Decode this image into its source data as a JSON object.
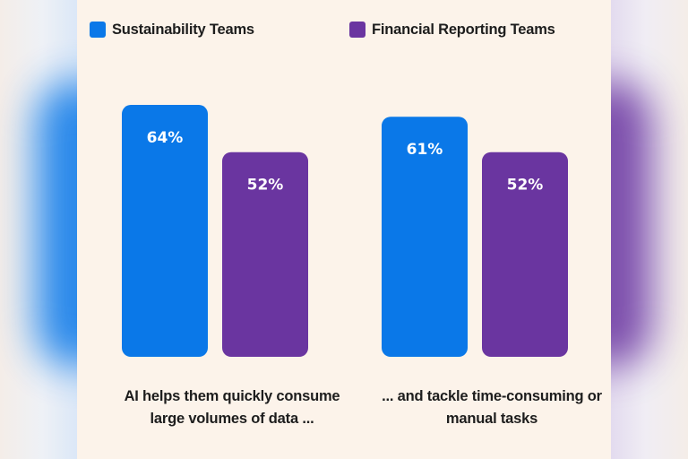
{
  "chart_data": {
    "type": "bar",
    "categories": [
      "AI helps them quickly consume large volumes of data ...",
      "... and tackle time-consuming or manual tasks"
    ],
    "series": [
      {
        "name": "Sustainability Teams",
        "values": [
          64,
          61
        ],
        "color": "#0a78e8"
      },
      {
        "name": "Financial Reporting Teams",
        "values": [
          52,
          52
        ],
        "color": "#6a35a0"
      }
    ],
    "value_labels": [
      [
        "64%",
        "61%"
      ],
      [
        "52%",
        "52%"
      ]
    ],
    "value_suffix": "%",
    "ylim": [
      0,
      100
    ],
    "grid": false,
    "legend_position": "top"
  }
}
